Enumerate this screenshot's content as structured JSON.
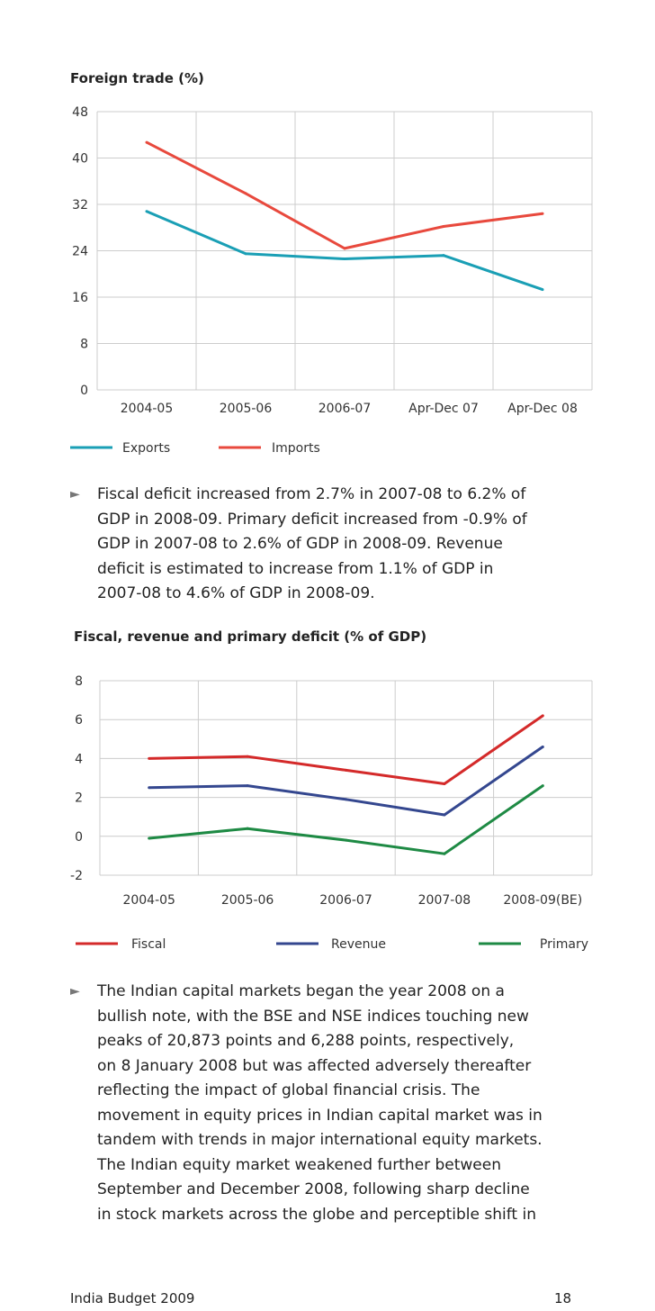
{
  "chart_data": [
    {
      "type": "line",
      "title": "Foreign trade (%)",
      "categories": [
        "2004-05",
        "2005-06",
        "2006-07",
        "Apr-Dec 07",
        "Apr-Dec 08"
      ],
      "series": [
        {
          "name": "Exports",
          "color": "#1a9fb5",
          "values": [
            30.8,
            23.5,
            22.6,
            23.2,
            17.3
          ]
        },
        {
          "name": "Imports",
          "color": "#e8493d",
          "values": [
            42.7,
            33.9,
            24.4,
            28.2,
            30.4
          ]
        }
      ],
      "yticks": [
        48,
        40,
        32,
        24,
        16,
        8,
        0
      ],
      "ylim": [
        0,
        48
      ],
      "grid": true,
      "legend": "bottom"
    },
    {
      "type": "line",
      "title": "Fiscal, revenue and primary deficit (% of GDP)",
      "categories": [
        "2004-05",
        "2005-06",
        "2006-07",
        "2007-08",
        "2008-09(BE)"
      ],
      "series": [
        {
          "name": "Fiscal",
          "color": "#d42a2a",
          "values": [
            4.0,
            4.1,
            3.4,
            2.7,
            6.2
          ]
        },
        {
          "name": "Revenue",
          "color": "#34478f",
          "values": [
            2.5,
            2.6,
            1.9,
            1.1,
            4.6
          ]
        },
        {
          "name": "Primary",
          "color": "#1e8a44",
          "values": [
            -0.1,
            0.4,
            -0.2,
            -0.9,
            2.6
          ]
        }
      ],
      "yticks": [
        8,
        6,
        4,
        2,
        0,
        -2
      ],
      "ylim": [
        -2,
        8
      ],
      "grid": true,
      "legend": "bottom"
    }
  ],
  "paragraphs": {
    "fiscal_lines": [
      "Fiscal deficit increased from 2.7% in 2007-08 to 6.2% of",
      "GDP in 2008-09. Primary deficit increased from -0.9% of",
      "GDP in 2007-08 to 2.6% of GDP in 2008-09. Revenue",
      "deficit is estimated to increase from 1.1% of GDP in",
      "2007-08 to 4.6% of GDP in 2008-09."
    ],
    "markets_lines": [
      "The Indian capital markets began the year 2008 on a",
      "bullish note, with the BSE and NSE indices touching new",
      "peaks of 20,873 points and 6,288 points, respectively,",
      "on 8 January 2008 but was affected adversely thereafter",
      "reflecting the impact of global financial crisis. The",
      "movement in equity prices in Indian capital market was in",
      "tandem with trends in major international equity markets.",
      "The Indian equity market weakened further between",
      "September and December 2008, following sharp decline",
      "in stock markets across the globe and perceptible shift in"
    ],
    "bullet_glyph": "►"
  },
  "footer": {
    "publication": "India Budget 2009",
    "page_number": "18"
  }
}
